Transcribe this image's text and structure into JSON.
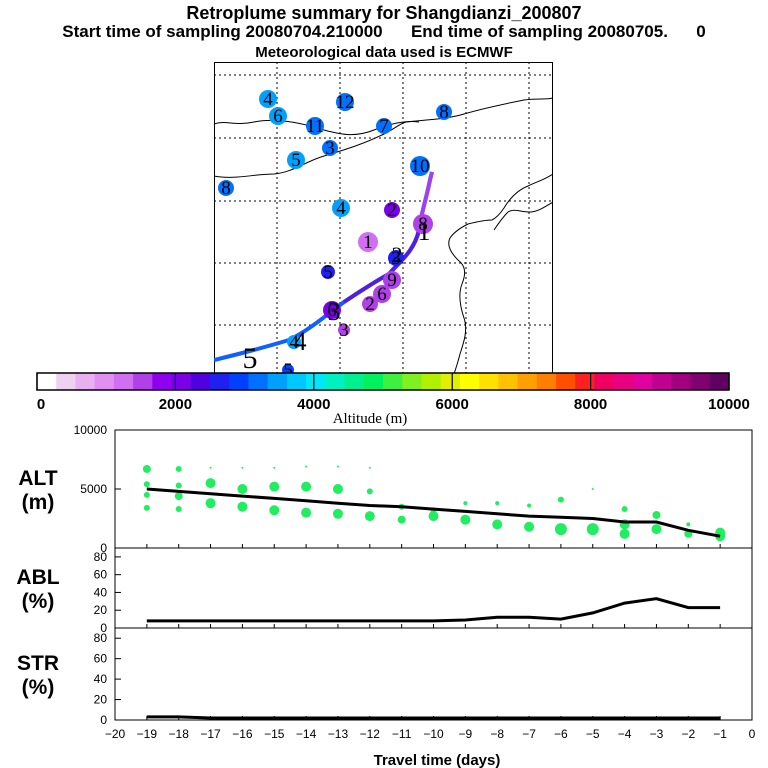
{
  "header": {
    "title": "Retroplume summary for Shangdianzi_200807",
    "subtitle": "Start time of sampling 20080704.210000      End time of sampling 20080705.      0",
    "meteo": "Meteorological data used is ECMWF"
  },
  "map": {
    "trajectory_labels": [
      "1",
      "2",
      "3",
      "4",
      "5"
    ],
    "cluster_points": [
      {
        "label": "4",
        "alt": 3600
      },
      {
        "label": "6",
        "alt": 3400
      },
      {
        "label": "12",
        "alt": 3300
      },
      {
        "label": "11",
        "alt": 3300
      },
      {
        "label": "7",
        "alt": 3300
      },
      {
        "label": "8",
        "alt": 3300
      },
      {
        "label": "3",
        "alt": 3300
      },
      {
        "label": "5",
        "alt": 3600
      },
      {
        "label": "10",
        "alt": 3300
      },
      {
        "label": "8",
        "alt": 3300
      },
      {
        "label": "4",
        "alt": 3400
      },
      {
        "label": "2",
        "alt": 2200
      },
      {
        "label": "1",
        "alt": 1200
      },
      {
        "label": "3",
        "alt": 2700
      },
      {
        "label": "5",
        "alt": 2500
      },
      {
        "label": "9",
        "alt": 1500
      },
      {
        "label": "6",
        "alt": 1500
      },
      {
        "label": "2",
        "alt": 1500
      },
      {
        "label": "6",
        "alt": 2000
      },
      {
        "label": "3",
        "alt": 1600
      },
      {
        "label": "4",
        "alt": 3500
      },
      {
        "label": "5",
        "alt": 3000
      },
      {
        "label": "8",
        "alt": 1600
      }
    ]
  },
  "colorbar": {
    "label": "Altitude (m)",
    "ticks": [
      "0",
      "2000",
      "4000",
      "6000",
      "8000",
      "10000"
    ],
    "colors": [
      "#ffffff",
      "#f0d0f0",
      "#e8b0f0",
      "#e090f0",
      "#d070f0",
      "#b040e8",
      "#9000f0",
      "#7a00e8",
      "#5000e0",
      "#2020f0",
      "#0040ff",
      "#0070ff",
      "#00a0ff",
      "#00c8ff",
      "#00e8f8",
      "#00f0c0",
      "#00f090",
      "#00f060",
      "#40f040",
      "#80f020",
      "#b0f000",
      "#e0f000",
      "#ffff00",
      "#ffe000",
      "#ffc000",
      "#ffa000",
      "#ff8000",
      "#ff5000",
      "#ff2020",
      "#f00060",
      "#e80080",
      "#e000a0",
      "#c00090",
      "#a00080",
      "#800070",
      "#600060"
    ]
  },
  "chart_data": [
    {
      "type": "scatter",
      "panel": "ALT",
      "ylabel": "ALT\n(m)",
      "ylim": [
        0,
        10000
      ],
      "yticks": [
        "0",
        "5000",
        "10000"
      ],
      "xlim": [
        -20,
        0
      ],
      "line": {
        "x": [
          -19,
          -18,
          -17,
          -16,
          -15,
          -14,
          -13,
          -12,
          -11,
          -10,
          -9,
          -8,
          -7,
          -6,
          -5,
          -4,
          -3,
          -2,
          -1
        ],
        "y": [
          5000,
          4800,
          4600,
          4400,
          4200,
          4000,
          3800,
          3600,
          3500,
          3300,
          3100,
          2900,
          2700,
          2600,
          2500,
          2200,
          2200,
          1500,
          1000
        ]
      },
      "points_x": [
        -19,
        -19,
        -19,
        -19,
        -18,
        -18,
        -18,
        -18,
        -17,
        -17,
        -17,
        -16,
        -16,
        -16,
        -15,
        -15,
        -15,
        -14,
        -14,
        -14,
        -13,
        -13,
        -13,
        -12,
        -12,
        -12,
        -11,
        -11,
        -10,
        -10,
        -9,
        -9,
        -8,
        -8,
        -7,
        -7,
        -6,
        -6,
        -5,
        -5,
        -4,
        -4,
        -4,
        -3,
        -3,
        -2,
        -2,
        -1,
        -1
      ],
      "points_y": [
        6700,
        5400,
        4500,
        3400,
        6700,
        5300,
        4400,
        3300,
        5500,
        3800,
        6800,
        5000,
        3500,
        6800,
        5200,
        3200,
        6800,
        5200,
        3000,
        6900,
        5000,
        2900,
        6900,
        4800,
        2700,
        6800,
        3500,
        2400,
        3200,
        2700,
        3800,
        2400,
        3800,
        2000,
        3600,
        1800,
        4100,
        1600,
        5000,
        1600,
        3300,
        2000,
        1200,
        2800,
        1600,
        2000,
        1200,
        1000,
        1300
      ],
      "points_size": [
        4,
        3,
        3,
        3,
        3,
        3,
        4,
        3,
        5,
        5,
        1,
        5,
        5,
        1,
        5,
        5,
        1,
        5,
        5,
        1,
        5,
        5,
        1,
        3,
        5,
        1,
        3,
        4,
        3,
        5,
        2,
        5,
        2,
        5,
        2,
        5,
        3,
        6,
        1,
        6,
        3,
        5,
        5,
        4,
        5,
        2,
        4,
        5,
        5
      ]
    },
    {
      "type": "line",
      "panel": "ABL",
      "ylabel": "ABL\n(%)",
      "ylim": [
        0,
        90
      ],
      "yticks": [
        "0",
        "20",
        "40",
        "60",
        "80"
      ],
      "xlim": [
        -20,
        0
      ],
      "x": [
        -19,
        -18,
        -17,
        -16,
        -15,
        -14,
        -13,
        -12,
        -11,
        -10,
        -9,
        -8,
        -7,
        -6,
        -5,
        -4,
        -3,
        -2,
        -1
      ],
      "y": [
        8,
        8,
        8,
        8,
        8,
        8,
        8,
        8,
        8,
        8,
        9,
        12,
        12,
        10,
        17,
        28,
        33,
        23,
        23
      ]
    },
    {
      "type": "line",
      "panel": "STR",
      "ylabel": "STR\n(%)",
      "ylim": [
        0,
        90
      ],
      "yticks": [
        "0",
        "20",
        "40",
        "60",
        "80"
      ],
      "xlim": [
        -20,
        0
      ],
      "x": [
        -19,
        -18,
        -17,
        -16,
        -15,
        -14,
        -13,
        -12,
        -11,
        -10,
        -9,
        -8,
        -7,
        -6,
        -5,
        -4,
        -3,
        -2,
        -1
      ],
      "y": [
        3,
        3,
        2,
        2,
        2,
        2,
        2,
        2,
        2,
        2,
        2,
        2,
        2,
        2,
        2,
        2,
        2,
        2,
        2
      ],
      "xlabel": "Travel time (days)",
      "xticks": [
        "−20",
        "−19",
        "−18",
        "−17",
        "−16",
        "−15",
        "−14",
        "−13",
        "−12",
        "−11",
        "−10",
        "−9",
        "−8",
        "−7",
        "−6",
        "−5",
        "−4",
        "−3",
        "−2",
        "−1",
        "0"
      ]
    }
  ]
}
